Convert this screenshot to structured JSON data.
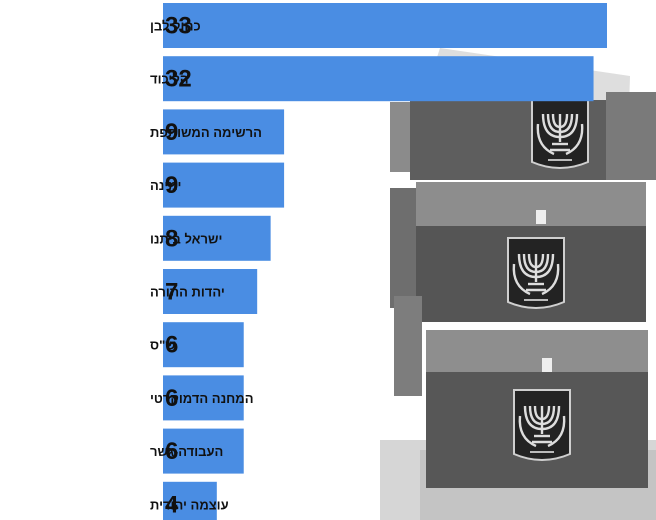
{
  "colors": {
    "bar": "#4a8de3"
  },
  "photo": {
    "icon": "ballot-boxes-with-state-emblem"
  },
  "chart_data": {
    "type": "bar",
    "orientation": "horizontal",
    "categories": [
      "כחול לבן",
      "הליכוד",
      "הרשימה המשותפת",
      "ימינה",
      "ישראל ביתנו",
      "יהדות התורה",
      "ש\"ס",
      "המחנה הדמוקרטי",
      "העבודה-גשר",
      "עוצמה יהודית"
    ],
    "values": [
      33,
      32,
      9,
      9,
      8,
      7,
      6,
      6,
      6,
      4
    ],
    "xlim": [
      0,
      33
    ],
    "title": "",
    "xlabel": "",
    "ylabel": "",
    "grid": false,
    "legend": "none"
  }
}
